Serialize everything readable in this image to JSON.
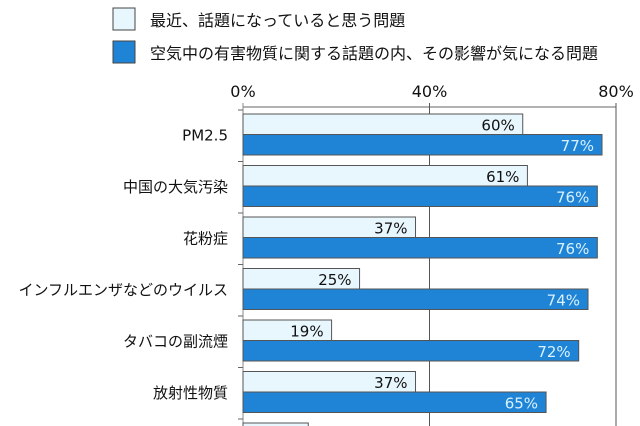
{
  "chart_data": {
    "type": "bar",
    "orientation": "horizontal",
    "categories": [
      "PM2.5",
      "中国の大気汚染",
      "花粉症",
      "インフルエンザなどのウイルス",
      "タバコの副流煙",
      "放射性物質",
      ""
    ],
    "series": [
      {
        "name": "最近、話題になっていると思う問題",
        "values": [
          60,
          61,
          37,
          25,
          19,
          37,
          14
        ],
        "color": "#e8f6fd",
        "label_color": "#111111"
      },
      {
        "name": "空気中の有害物質に関する話題の内、その影響が気になる問題",
        "values": [
          77,
          76,
          76,
          74,
          72,
          65,
          null
        ],
        "color": "#1f84d6",
        "label_color": "#d8f1ff"
      }
    ],
    "xlim": [
      0,
      80
    ],
    "ticks": [
      "0%",
      "40%",
      "80%"
    ],
    "tick_values": [
      0,
      40,
      80
    ],
    "legend": "top",
    "grid": true
  }
}
